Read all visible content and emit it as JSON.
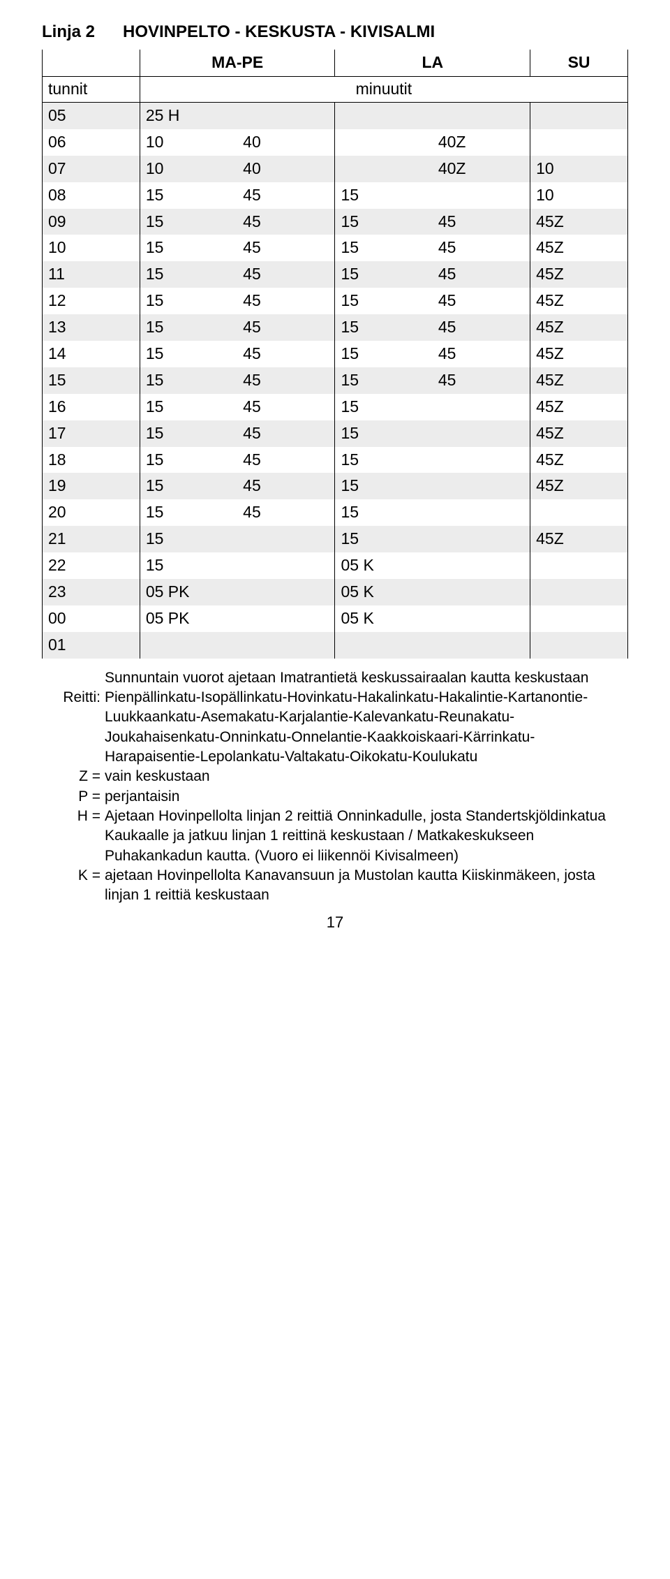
{
  "header": {
    "line": "Linja 2",
    "route": "HOVINPELTO - KESKUSTA - KIVISALMI"
  },
  "dayHeaders": {
    "mape": "MA-PE",
    "la": "LA",
    "su": "SU"
  },
  "subhead": {
    "tunnit": "tunnit",
    "minuutit": "minuutit"
  },
  "rows": [
    {
      "h": "05",
      "mp": [
        "25 H",
        ""
      ],
      "la": [
        "",
        ""
      ],
      "su": ""
    },
    {
      "h": "06",
      "mp": [
        "10",
        "40"
      ],
      "la": [
        "",
        "40Z"
      ],
      "su": ""
    },
    {
      "h": "07",
      "mp": [
        "10",
        "40"
      ],
      "la": [
        "",
        "40Z"
      ],
      "su": "10"
    },
    {
      "h": "08",
      "mp": [
        "15",
        "45"
      ],
      "la": [
        "15",
        ""
      ],
      "su": "10"
    },
    {
      "h": "09",
      "mp": [
        "15",
        "45"
      ],
      "la": [
        "15",
        "45"
      ],
      "su": "45Z"
    },
    {
      "h": "10",
      "mp": [
        "15",
        "45"
      ],
      "la": [
        "15",
        "45"
      ],
      "su": "45Z"
    },
    {
      "h": "11",
      "mp": [
        "15",
        "45"
      ],
      "la": [
        "15",
        "45"
      ],
      "su": "45Z"
    },
    {
      "h": "12",
      "mp": [
        "15",
        "45"
      ],
      "la": [
        "15",
        "45"
      ],
      "su": "45Z"
    },
    {
      "h": "13",
      "mp": [
        "15",
        "45"
      ],
      "la": [
        "15",
        "45"
      ],
      "su": "45Z"
    },
    {
      "h": "14",
      "mp": [
        "15",
        "45"
      ],
      "la": [
        "15",
        "45"
      ],
      "su": "45Z"
    },
    {
      "h": "15",
      "mp": [
        "15",
        "45"
      ],
      "la": [
        "15",
        "45"
      ],
      "su": "45Z"
    },
    {
      "h": "16",
      "mp": [
        "15",
        "45"
      ],
      "la": [
        "15",
        ""
      ],
      "su": "45Z"
    },
    {
      "h": "17",
      "mp": [
        "15",
        "45"
      ],
      "la": [
        "15",
        ""
      ],
      "su": "45Z"
    },
    {
      "h": "18",
      "mp": [
        "15",
        "45"
      ],
      "la": [
        "15",
        ""
      ],
      "su": "45Z"
    },
    {
      "h": "19",
      "mp": [
        "15",
        "45"
      ],
      "la": [
        "15",
        ""
      ],
      "su": "45Z"
    },
    {
      "h": "20",
      "mp": [
        "15",
        "45"
      ],
      "la": [
        "15",
        ""
      ],
      "su": ""
    },
    {
      "h": "21",
      "mp": [
        "15",
        ""
      ],
      "la": [
        "15",
        ""
      ],
      "su": "45Z"
    },
    {
      "h": "22",
      "mp": [
        "15",
        ""
      ],
      "la": [
        "05 K",
        ""
      ],
      "su": ""
    },
    {
      "h": "23",
      "mp": [
        "05 PK",
        ""
      ],
      "la": [
        "05 K",
        ""
      ],
      "su": ""
    },
    {
      "h": "00",
      "mp": [
        "05 PK",
        ""
      ],
      "la": [
        "05 K",
        ""
      ],
      "su": ""
    },
    {
      "h": "01",
      "mp": [
        "",
        ""
      ],
      "la": [
        "",
        ""
      ],
      "su": ""
    }
  ],
  "footnotes": [
    {
      "label": "",
      "text": "Sunnuntain vuorot ajetaan Imatrantietä keskussairaalan kautta keskustaan"
    },
    {
      "label": "Reitti:",
      "text": "Pienpällinkatu-Isopällinkatu-Hovinkatu-Hakalinkatu-Hakalintie-Kartanontie-Luukkaankatu-Asemakatu-Karjalantie-Kalevankatu-Reunakatu-Joukahaisenkatu-Onninkatu-Onnelantie-Kaakkoiskaari-Kärrinkatu-Harapaisentie-Lepolankatu-Valtakatu-Oikokatu-Koulukatu"
    },
    {
      "label": "Z =",
      "text": "vain keskustaan"
    },
    {
      "label": "P =",
      "text": "perjantaisin"
    },
    {
      "label": "H =",
      "text": "Ajetaan Hovinpellolta linjan 2 reittiä Onninkadulle, josta Standertskjöldinkatua Kaukaalle ja jatkuu linjan 1 reittinä keskustaan / Matkakeskukseen Puhakankadun kautta. (Vuoro ei liikennöi Kivisalmeen)"
    },
    {
      "label": "K =",
      "text": "ajetaan Hovinpellolta Kanavansuun ja Mustolan kautta Kiiskinmäkeen, josta linjan 1 reittiä keskustaan"
    }
  ],
  "pageNumber": "17",
  "style": {
    "stripeColor": "#ececec",
    "bg": "#ffffff",
    "text": "#000000"
  }
}
